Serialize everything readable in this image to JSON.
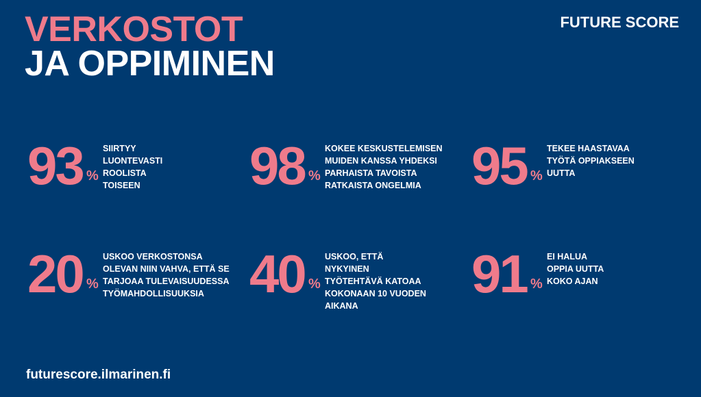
{
  "title": {
    "line1": "VERKOSTOT",
    "line2": "JA OPPIMINEN"
  },
  "brand": "FUTURE SCORE",
  "footer": {
    "url": "futurescore.ilmarinen.fi"
  },
  "stats": [
    {
      "value": "93",
      "unit": "%",
      "text": "SIIRTYY LUONTEVASTI ROOLISTA TOISEEN"
    },
    {
      "value": "98",
      "unit": "%",
      "text": "KOKEE KESKUSTELEMISEN MUIDEN KANSSA YHDEKSI PARHAISTA TAVOISTA RATKAISTA ONGELMIA"
    },
    {
      "value": "95",
      "unit": "%",
      "text": "TEKEE HAASTAVAA TYÖTÄ OPPIAKSEEN UUTTA"
    },
    {
      "value": "20",
      "unit": "%",
      "text": "USKOO VERKOSTONSA OLEVAN NIIN VAHVA, ETTÄ SE TARJOAA TULEVAISUUDESSA TYÖMAHDOLLISUUKSIA"
    },
    {
      "value": "40",
      "unit": "%",
      "text": "USKOO, ETTÄ NYKYINEN TYÖTEHTÄVÄ KATOAA KOKONAAN 10 VUODEN AIKANA"
    },
    {
      "value": "91",
      "unit": "%",
      "text": "EI HALUA OPPIA UUTTA KOKO AJAN"
    }
  ],
  "colors": {
    "background": "#003a70",
    "accent": "#ef7b8b",
    "text": "#ffffff"
  }
}
